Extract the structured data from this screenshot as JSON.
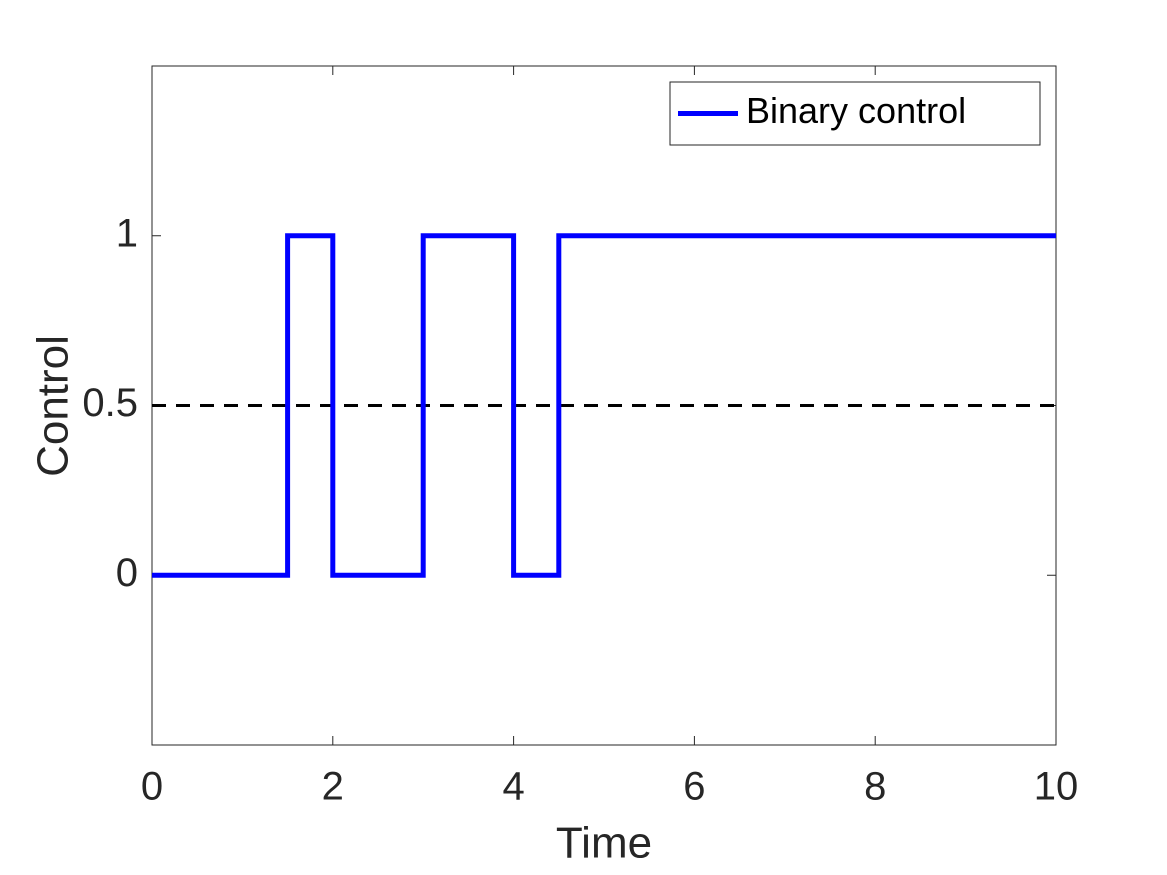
{
  "chart_data": {
    "type": "line",
    "x_label": "Time",
    "y_label": "Control",
    "x": [
      0,
      1.5,
      1.5,
      2,
      2,
      3,
      3,
      4,
      4,
      4.5,
      4.5,
      10
    ],
    "series": [
      {
        "name": "Binary control",
        "color": "#0000ff",
        "values": [
          0,
          0,
          1,
          1,
          0,
          0,
          1,
          1,
          0,
          0,
          1,
          1
        ]
      }
    ],
    "threshold": 0.5,
    "xlim": [
      0,
      10
    ],
    "xticks": [
      0,
      2,
      4,
      6,
      8,
      10
    ],
    "ylim": [
      -0.5,
      1.5
    ],
    "yticks": [
      0,
      0.5,
      1
    ],
    "legend": "northeast",
    "grid": false
  }
}
